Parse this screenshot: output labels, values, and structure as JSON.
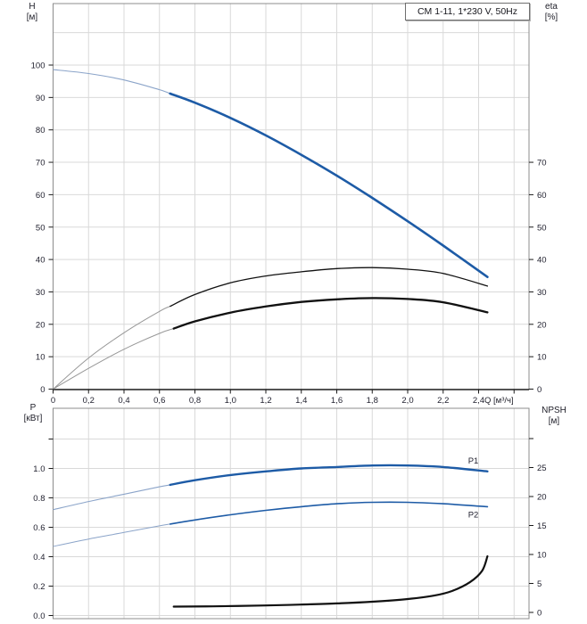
{
  "colors": {
    "curve_blue": "#1d5ba6",
    "curve_black": "#111111",
    "thin_blue": "#8ba4c9",
    "thin_gray": "#979797",
    "grid": "#d9d9d9",
    "frame": "#8c8c8c",
    "axis": "#1a1a1a",
    "tick_text": "#222230",
    "series_label_blue": "#1d5ba6"
  },
  "chart_data": [
    {
      "id": "hq",
      "type": "line",
      "title": "CM 1-11, 1*230 V, 50Hz",
      "x_axis": {
        "unit_label": "Q [м³/ч]",
        "tick_values": [
          0,
          0.2,
          0.4,
          0.6,
          0.8,
          1.0,
          1.2,
          1.4,
          1.6,
          1.8,
          2.0,
          2.2,
          2.4
        ],
        "tick_labels": [
          "0",
          "0,2",
          "0,4",
          "0,6",
          "0,8",
          "1,0",
          "1,2",
          "1,4",
          "1,6",
          "1,8",
          "2,0",
          "2,2",
          "2,4"
        ],
        "extra_tick_values": [
          2.6
        ],
        "xlim": [
          0,
          2.69
        ],
        "grid": true
      },
      "left_axis": {
        "name": "H",
        "unit": "[м]",
        "tick_values": [
          0,
          10,
          20,
          30,
          40,
          50,
          60,
          70,
          80,
          90,
          100
        ],
        "tick_labels": [
          "0",
          "10",
          "20",
          "30",
          "40",
          "50",
          "60",
          "70",
          "80",
          "90",
          "100"
        ],
        "ylim": [
          0,
          119
        ]
      },
      "right_axis": {
        "name": "eta",
        "unit": "[%]",
        "tick_values": [
          0,
          10,
          20,
          30,
          40,
          50,
          60,
          70
        ],
        "tick_labels": [
          "0",
          "10",
          "20",
          "30",
          "40",
          "50",
          "60",
          "70"
        ],
        "ylim": [
          0,
          119
        ]
      },
      "series": [
        {
          "name": "head-curve",
          "label": "",
          "axis": "left",
          "color": "curve_blue",
          "width": 2.6,
          "thin_color": "thin_blue",
          "thin_width": 1.1,
          "split_q": 0.66,
          "points": [
            [
              0,
              98.6
            ],
            [
              0.2,
              97.4
            ],
            [
              0.4,
              95.4
            ],
            [
              0.6,
              92.4
            ],
            [
              0.8,
              88.4
            ],
            [
              1.0,
              83.7
            ],
            [
              1.2,
              78.3
            ],
            [
              1.4,
              72.3
            ],
            [
              1.6,
              65.9
            ],
            [
              1.8,
              59.0
            ],
            [
              2.0,
              51.8
            ],
            [
              2.2,
              44.3
            ],
            [
              2.45,
              34.6
            ]
          ]
        },
        {
          "name": "eta-pump-curve",
          "label": "",
          "axis": "right",
          "color": "curve_black",
          "width": 1.3,
          "thin_color": "thin_gray",
          "thin_width": 1,
          "split_q": 0.66,
          "points": [
            [
              0,
              0
            ],
            [
              0.2,
              9.6
            ],
            [
              0.4,
              17.4
            ],
            [
              0.6,
              24.0
            ],
            [
              0.8,
              29.2
            ],
            [
              1.0,
              32.8
            ],
            [
              1.2,
              34.9
            ],
            [
              1.4,
              36.2
            ],
            [
              1.6,
              37.2
            ],
            [
              1.8,
              37.5
            ],
            [
              2.0,
              37.0
            ],
            [
              2.2,
              35.7
            ],
            [
              2.45,
              31.8
            ]
          ]
        },
        {
          "name": "eta-pump-motor-curve",
          "label": "",
          "axis": "right",
          "color": "curve_black",
          "width": 2.3,
          "thin_color": "thin_gray",
          "thin_width": 1,
          "split_q": 0.68,
          "points": [
            [
              0,
              0
            ],
            [
              0.2,
              6.4
            ],
            [
              0.4,
              12.3
            ],
            [
              0.6,
              17.2
            ],
            [
              0.8,
              20.9
            ],
            [
              1.0,
              23.6
            ],
            [
              1.2,
              25.5
            ],
            [
              1.4,
              26.9
            ],
            [
              1.6,
              27.7
            ],
            [
              1.8,
              28.1
            ],
            [
              2.0,
              27.8
            ],
            [
              2.2,
              26.8
            ],
            [
              2.45,
              23.7
            ]
          ]
        }
      ]
    },
    {
      "id": "pq",
      "type": "line",
      "title": "",
      "x_axis": {
        "unit_label": "",
        "tick_values": [],
        "tick_labels": [],
        "extra_tick_values": [],
        "xlim": [
          0,
          2.69
        ],
        "grid": true
      },
      "left_axis": {
        "name": "P",
        "unit": "[кВт]",
        "tick_values": [
          0,
          0.2,
          0.4,
          0.6,
          0.8,
          1.0
        ],
        "tick_labels": [
          "0.0",
          "0.2",
          "0.4",
          "0.6",
          "0.8",
          "1.0"
        ],
        "extra_tick_values": [
          1.2
        ],
        "ylim": [
          0,
          1.41
        ]
      },
      "right_axis": {
        "name": "NPSH",
        "unit": "[м]",
        "tick_values": [
          0,
          5,
          10,
          15,
          20,
          25
        ],
        "tick_labels": [
          "0",
          "5",
          "10",
          "15",
          "20",
          "25"
        ],
        "extra_tick_values": [
          30
        ],
        "ylim": [
          0,
          31
        ]
      },
      "series": [
        {
          "name": "p1-power-curve",
          "label": "P1",
          "axis": "left",
          "color": "curve_blue",
          "width": 2.4,
          "thin_color": "thin_blue",
          "thin_width": 1.1,
          "split_q": 0.66,
          "points": [
            [
              0,
              0.72
            ],
            [
              0.2,
              0.775
            ],
            [
              0.4,
              0.825
            ],
            [
              0.6,
              0.875
            ],
            [
              0.8,
              0.92
            ],
            [
              1.0,
              0.955
            ],
            [
              1.2,
              0.98
            ],
            [
              1.4,
              1.0
            ],
            [
              1.6,
              1.01
            ],
            [
              1.8,
              1.02
            ],
            [
              2.0,
              1.02
            ],
            [
              2.2,
              1.01
            ],
            [
              2.45,
              0.98
            ]
          ]
        },
        {
          "name": "p2-power-curve",
          "label": "P2",
          "axis": "left",
          "color": "curve_blue",
          "width": 1.6,
          "thin_color": "thin_blue",
          "thin_width": 1,
          "split_q": 0.66,
          "points": [
            [
              0,
              0.47
            ],
            [
              0.2,
              0.52
            ],
            [
              0.4,
              0.565
            ],
            [
              0.6,
              0.61
            ],
            [
              0.8,
              0.65
            ],
            [
              1.0,
              0.685
            ],
            [
              1.2,
              0.715
            ],
            [
              1.4,
              0.74
            ],
            [
              1.6,
              0.76
            ],
            [
              1.8,
              0.77
            ],
            [
              2.0,
              0.77
            ],
            [
              2.2,
              0.76
            ],
            [
              2.45,
              0.74
            ]
          ]
        },
        {
          "name": "npsh-curve",
          "label": "",
          "axis": "right",
          "color": "curve_black",
          "width": 2.2,
          "thin_color": "thin_gray",
          "thin_width": 1,
          "split_q": null,
          "points": [
            [
              0.68,
              1.0
            ],
            [
              0.9,
              1.05
            ],
            [
              1.2,
              1.2
            ],
            [
              1.4,
              1.35
            ],
            [
              1.6,
              1.55
            ],
            [
              1.8,
              1.85
            ],
            [
              2.0,
              2.3
            ],
            [
              2.15,
              2.9
            ],
            [
              2.25,
              3.7
            ],
            [
              2.35,
              5.2
            ],
            [
              2.42,
              7.2
            ],
            [
              2.45,
              9.7
            ]
          ]
        }
      ]
    }
  ]
}
